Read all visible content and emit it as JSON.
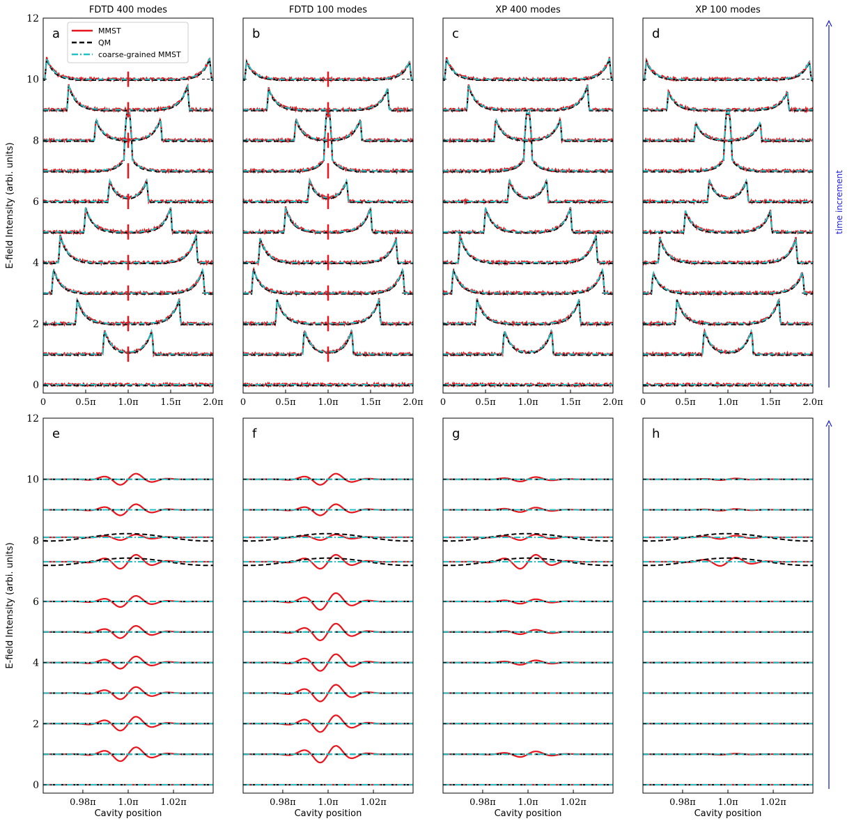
{
  "figure": {
    "legend": {
      "placement": "top-left of panel a",
      "entries": [
        {
          "label": "MMST",
          "color": "#e8141b",
          "style": "solid"
        },
        {
          "label": "QM",
          "color": "#000000",
          "style": "dashed"
        },
        {
          "label": "coarse-grained MMST",
          "color": "#22c1c6",
          "style": "dashdot"
        }
      ]
    },
    "time_arrow_label": "time increment",
    "time_arrow_color": "#1f1fdc"
  },
  "chart_data": [
    {
      "type": "line",
      "panel": "a",
      "title": "FDTD 400 modes",
      "ylabel": "E-field Intensity (arbi. units)",
      "xlabel": "",
      "xlim": [
        0,
        2.0
      ],
      "ylim": [
        0,
        12
      ],
      "x_unit": "π",
      "xticks": [
        "0",
        "0.5π",
        "1.0π",
        "1.5π",
        "2.0π"
      ],
      "yticks": [
        "0",
        "2",
        "4",
        "6",
        "8",
        "10",
        "12"
      ],
      "baselines": [
        0,
        1,
        2,
        3,
        4,
        5,
        6,
        7,
        8,
        9,
        10
      ],
      "pulse_peaks_x": [
        0,
        0.72,
        0.4,
        0.12,
        0.2,
        0.5,
        0.78,
        0.98,
        0.62,
        0.3,
        0.04
      ],
      "pulse_heights": [
        0,
        0.8,
        0.8,
        0.8,
        0.9,
        0.8,
        0.7,
        0.8,
        0.7,
        0.8,
        0.7
      ],
      "center_spike": true
    },
    {
      "type": "line",
      "panel": "b",
      "title": "FDTD 100 modes",
      "ylabel": "",
      "xlabel": "",
      "xlim": [
        0,
        2.0
      ],
      "ylim": [
        0,
        12
      ],
      "x_unit": "π",
      "xticks": [
        "0",
        "0.5π",
        "1.0π",
        "1.5π",
        "2.0π"
      ],
      "yticks": [
        "0",
        "2",
        "4",
        "6",
        "8",
        "10",
        "12"
      ],
      "baselines": [
        0,
        1,
        2,
        3,
        4,
        5,
        6,
        7,
        8,
        9,
        10
      ],
      "pulse_peaks_x": [
        0,
        0.72,
        0.4,
        0.12,
        0.2,
        0.5,
        0.78,
        0.98,
        0.62,
        0.3,
        0.04
      ],
      "pulse_heights": [
        0,
        0.8,
        0.8,
        0.8,
        0.8,
        0.8,
        0.7,
        0.8,
        0.7,
        0.7,
        0.6
      ],
      "center_spike": true
    },
    {
      "type": "line",
      "panel": "c",
      "title": "XP 400 modes",
      "ylabel": "",
      "xlabel": "",
      "xlim": [
        0,
        2.0
      ],
      "ylim": [
        0,
        12
      ],
      "x_unit": "π",
      "xticks": [
        "0",
        "0.5π",
        "1.0π",
        "1.5π",
        "2.0π"
      ],
      "yticks": [
        "0",
        "2",
        "4",
        "6",
        "8",
        "10",
        "12"
      ],
      "baselines": [
        0,
        1,
        2,
        3,
        4,
        5,
        6,
        7,
        8,
        9,
        10
      ],
      "pulse_peaks_x": [
        0,
        0.72,
        0.4,
        0.12,
        0.2,
        0.5,
        0.78,
        0.98,
        0.62,
        0.3,
        0.04
      ],
      "pulse_heights": [
        0,
        0.8,
        0.8,
        0.8,
        0.9,
        0.8,
        0.7,
        0.8,
        0.7,
        0.8,
        0.7
      ],
      "center_spike": false
    },
    {
      "type": "line",
      "panel": "d",
      "title": "XP 100 modes",
      "ylabel": "",
      "xlabel": "",
      "xlim": [
        0,
        2.0
      ],
      "ylim": [
        0,
        12
      ],
      "x_unit": "π",
      "xticks": [
        "0",
        "0.5π",
        "1.0π",
        "1.5π",
        "2.0π"
      ],
      "yticks": [
        "0",
        "2",
        "4",
        "6",
        "8",
        "10",
        "12"
      ],
      "baselines": [
        0,
        1,
        2,
        3,
        4,
        5,
        6,
        7,
        8,
        9,
        10
      ],
      "pulse_peaks_x": [
        0,
        0.72,
        0.4,
        0.12,
        0.2,
        0.5,
        0.78,
        0.98,
        0.62,
        0.3,
        0.04
      ],
      "pulse_heights": [
        0,
        0.8,
        0.8,
        0.7,
        0.8,
        0.7,
        0.7,
        0.8,
        0.6,
        0.6,
        0.6
      ],
      "center_spike": false
    },
    {
      "type": "line",
      "panel": "e",
      "title": "",
      "ylabel": "E-field Intensity (arbi. units)",
      "xlabel": "Cavity position",
      "xlim": [
        0.9625,
        1.0375
      ],
      "ylim": [
        0,
        12
      ],
      "x_unit": "π",
      "xticks": [
        "0.98π",
        "1.0π",
        "1.02π"
      ],
      "yticks": [
        "0",
        "2",
        "4",
        "6",
        "8",
        "10",
        "12"
      ],
      "baselines": [
        0,
        1,
        2,
        3,
        4,
        5,
        6,
        7.3,
        8.1,
        9,
        10
      ],
      "mmst_amplitudes": [
        0,
        0.25,
        0.25,
        0.22,
        0.22,
        0.22,
        0.2,
        0.25,
        0.1,
        0.2,
        0.2
      ]
    },
    {
      "type": "line",
      "panel": "f",
      "title": "",
      "ylabel": "",
      "xlabel": "Cavity position",
      "xlim": [
        0.9625,
        1.0375
      ],
      "ylim": [
        0,
        12
      ],
      "x_unit": "π",
      "xticks": [
        "0.98π",
        "1.0π",
        "1.02π"
      ],
      "yticks": [
        "0",
        "2",
        "4",
        "6",
        "8",
        "10",
        "12"
      ],
      "baselines": [
        0,
        1,
        2,
        3,
        4,
        5,
        6,
        7.3,
        8.1,
        9,
        10
      ],
      "mmst_amplitudes": [
        0,
        0.3,
        0.3,
        0.3,
        0.3,
        0.3,
        0.3,
        0.25,
        0.1,
        0.2,
        0.2
      ]
    },
    {
      "type": "line",
      "panel": "g",
      "title": "",
      "ylabel": "",
      "xlabel": "Cavity position",
      "xlim": [
        0.9625,
        1.0375
      ],
      "ylim": [
        0,
        12
      ],
      "x_unit": "π",
      "xticks": [
        "0.98π",
        "1.0π",
        "1.02π"
      ],
      "yticks": [
        "0",
        "2",
        "4",
        "6",
        "8",
        "10",
        "12"
      ],
      "baselines": [
        0,
        1,
        2,
        3,
        4,
        5,
        6,
        7.3,
        8.1,
        9,
        10
      ],
      "mmst_amplitudes": [
        0,
        0.1,
        0,
        0,
        0.08,
        0.08,
        0.08,
        0.25,
        0.1,
        0.08,
        0.08
      ]
    },
    {
      "type": "line",
      "panel": "h",
      "title": "",
      "ylabel": "",
      "xlabel": "Cavity position",
      "xlim": [
        0.9625,
        1.0375
      ],
      "ylim": [
        0,
        12
      ],
      "x_unit": "π",
      "xticks": [
        "0.98π",
        "1.0π",
        "1.02π"
      ],
      "yticks": [
        "0",
        "2",
        "4",
        "6",
        "8",
        "10",
        "12"
      ],
      "baselines": [
        0,
        1,
        2,
        3,
        4,
        5,
        6,
        7.3,
        8.1,
        9,
        10
      ],
      "mmst_amplitudes": [
        0,
        0.02,
        0,
        0,
        0,
        0,
        0,
        0.15,
        0.06,
        0.03,
        0.03
      ]
    }
  ]
}
